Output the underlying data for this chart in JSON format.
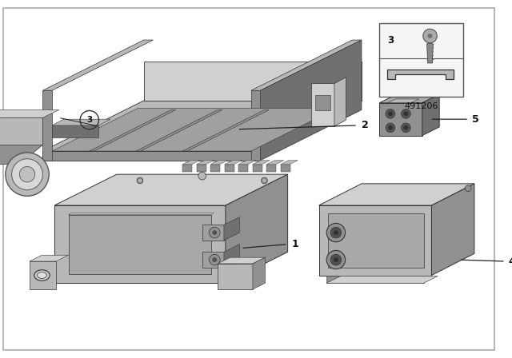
{
  "bg": "#ffffff",
  "border": "#b0b0b0",
  "fw": 6.4,
  "fh": 4.48,
  "dpi": 100,
  "gray_light": "#d0d0d0",
  "gray_mid": "#b8b8b8",
  "gray_dark": "#909090",
  "gray_darker": "#707070",
  "white": "#f8f8f8",
  "part_number": "491206"
}
